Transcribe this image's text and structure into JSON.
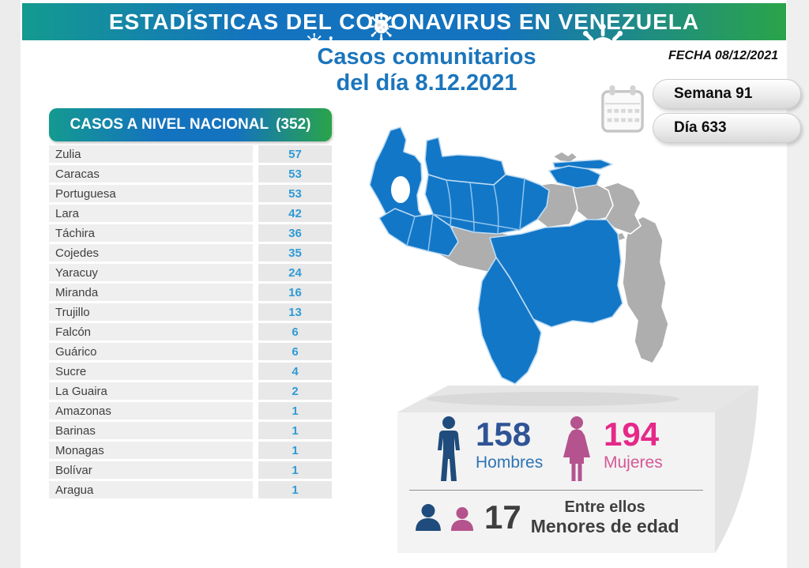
{
  "banner": {
    "title": "ESTADÍSTICAS DEL CORONAVIRUS EN VENEZUELA"
  },
  "subtitle": {
    "line1": "Casos comunitarios",
    "line2": "del día 8.12.2021"
  },
  "date_label": "FECHA 08/12/2021",
  "badges": {
    "week": "Semana 91",
    "day": "Día 633"
  },
  "table": {
    "header": "CASOS A NIVEL NACIONAL",
    "total": "(352)",
    "rows": [
      {
        "state": "Zulia",
        "cases": 57
      },
      {
        "state": "Caracas",
        "cases": 53
      },
      {
        "state": "Portuguesa",
        "cases": 53
      },
      {
        "state": "Lara",
        "cases": 42
      },
      {
        "state": "Táchira",
        "cases": 36
      },
      {
        "state": "Cojedes",
        "cases": 35
      },
      {
        "state": "Yaracuy",
        "cases": 24
      },
      {
        "state": "Miranda",
        "cases": 16
      },
      {
        "state": "Trujillo",
        "cases": 13
      },
      {
        "state": "Falcón",
        "cases": 6
      },
      {
        "state": "Guárico",
        "cases": 6
      },
      {
        "state": "Sucre",
        "cases": 4
      },
      {
        "state": "La Guaira",
        "cases": 2
      },
      {
        "state": "Amazonas",
        "cases": 1
      },
      {
        "state": "Barinas",
        "cases": 1
      },
      {
        "state": "Monagas",
        "cases": 1
      },
      {
        "state": "Bolívar",
        "cases": 1
      },
      {
        "state": "Aragua",
        "cases": 1
      }
    ]
  },
  "stats": {
    "men": {
      "value": "158",
      "label": "Hombres"
    },
    "women": {
      "value": "194",
      "label": "Mujeres"
    },
    "minors": {
      "value": "17",
      "line1": "Entre ellos",
      "line2": "Menores de edad"
    }
  },
  "icons": {
    "virus": "virus-icon",
    "calendar": "calendar-icon",
    "man": "man-pictogram-icon",
    "woman": "woman-pictogram-icon",
    "busts": "people-busts-icon"
  },
  "colors": {
    "banner_teal": "#149a90",
    "banner_blue": "#1473be",
    "banner_green": "#2aa44a",
    "subtitle_blue": "#1b75bc",
    "value_blue": "#2e9bd5",
    "map_case_blue": "#1377c8",
    "map_no_case_gray": "#aeaeae",
    "men_navy": "#1f4c7c",
    "men_number": "#2f5496",
    "women_pink": "#b5538e",
    "women_number": "#e62889"
  },
  "chart_data": {
    "type": "table",
    "title": "CASOS A NIVEL NACIONAL (352)",
    "subtitle": "Casos comunitarios del día 8.12.2021",
    "date": "08/12/2021",
    "week": 91,
    "day": 633,
    "categories": [
      "Zulia",
      "Caracas",
      "Portuguesa",
      "Lara",
      "Táchira",
      "Cojedes",
      "Yaracuy",
      "Miranda",
      "Trujillo",
      "Falcón",
      "Guárico",
      "Sucre",
      "La Guaira",
      "Amazonas",
      "Barinas",
      "Monagas",
      "Bolívar",
      "Aragua"
    ],
    "values": [
      57,
      53,
      53,
      42,
      36,
      35,
      24,
      16,
      13,
      6,
      6,
      4,
      2,
      1,
      1,
      1,
      1,
      1
    ],
    "total": 352,
    "demographics": {
      "hombres": 158,
      "mujeres": 194,
      "menores_de_edad": 17
    },
    "map": {
      "type": "choropleth",
      "region": "Venezuela",
      "highlight_meaning": "estados con casos (azul) / sin casos (gris)"
    }
  }
}
